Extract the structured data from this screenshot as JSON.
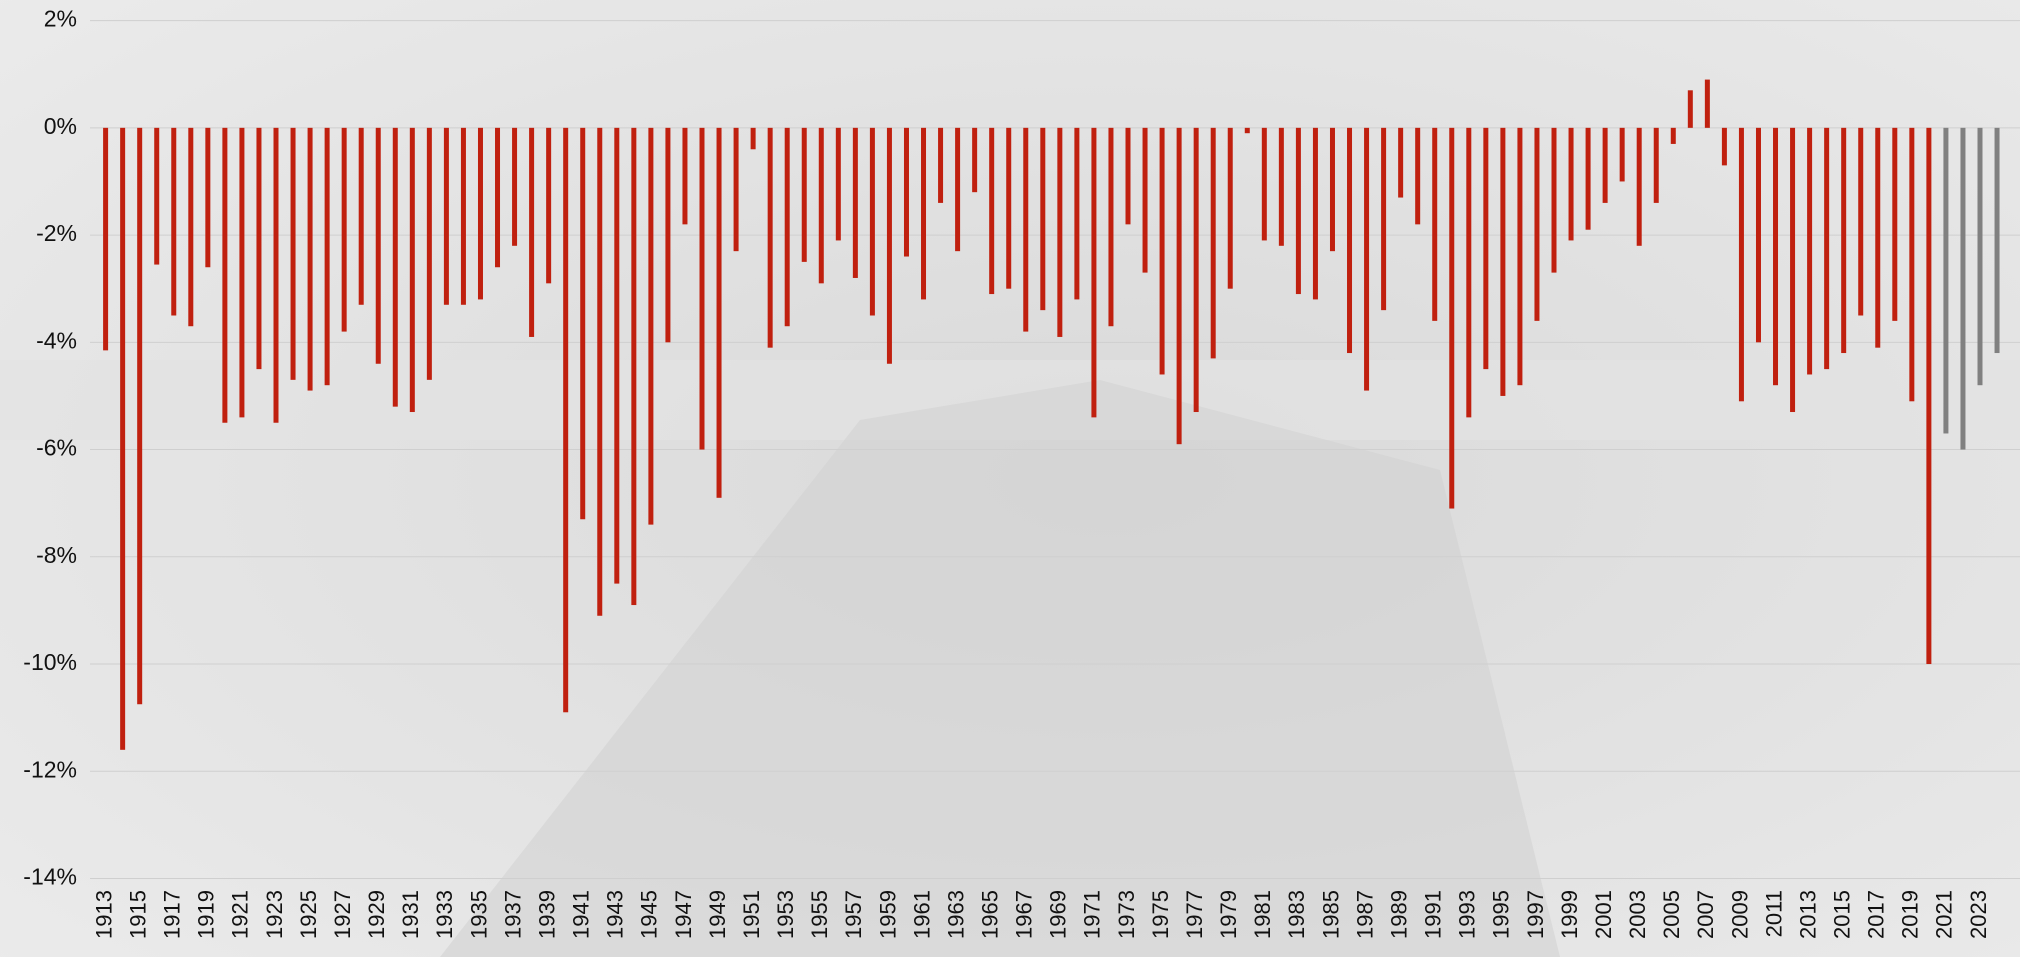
{
  "chart_data": {
    "type": "bar",
    "categories": [
      "1913",
      null,
      "1915",
      null,
      "1917",
      null,
      "1919",
      null,
      "1921",
      null,
      "1923",
      null,
      "1925",
      null,
      "1927",
      null,
      "1929",
      null,
      "1931",
      null,
      "1933",
      null,
      "1935",
      null,
      "1937",
      null,
      "1939",
      null,
      "1941",
      null,
      "1943",
      null,
      "1945",
      null,
      "1947",
      null,
      "1949",
      null,
      "1951",
      null,
      "1953",
      null,
      "1955",
      null,
      "1957",
      null,
      "1959",
      null,
      "1961",
      null,
      "1963",
      null,
      "1965",
      null,
      "1967",
      null,
      "1969",
      null,
      "1971",
      null,
      "1973",
      null,
      "1975",
      null,
      "1977",
      null,
      "1979",
      null,
      "1981",
      null,
      "1983",
      null,
      "1985",
      null,
      "1987",
      null,
      "1989",
      null,
      "1991",
      null,
      "1993",
      null,
      "1995",
      null,
      "1997",
      null,
      "1999",
      null,
      "2001",
      null,
      "2003",
      null,
      "2005",
      null,
      "2007",
      null,
      "2009",
      null,
      "2011",
      null,
      "2013",
      null,
      "2015",
      null,
      "2017",
      null,
      "2019",
      null,
      "2021",
      null,
      "2023",
      null
    ],
    "values": [
      -4.15,
      -11.6,
      -10.75,
      -2.55,
      -3.5,
      -3.7,
      -2.6,
      -5.5,
      -5.4,
      -4.5,
      -5.5,
      -4.7,
      -4.9,
      -4.8,
      -3.8,
      -3.3,
      -4.4,
      -5.2,
      -5.3,
      -4.7,
      -3.3,
      -3.3,
      -3.2,
      -2.6,
      -2.2,
      -3.9,
      -2.9,
      -10.9,
      -7.3,
      -9.1,
      -8.5,
      -8.9,
      -7.4,
      -4.0,
      -1.8,
      -6.0,
      -6.9,
      -2.3,
      -0.4,
      -4.1,
      -3.7,
      -2.5,
      -2.9,
      -2.1,
      -2.8,
      -3.5,
      -4.4,
      -2.4,
      -3.2,
      -1.4,
      -2.3,
      -1.2,
      -3.1,
      -3.0,
      -3.8,
      -3.4,
      -3.9,
      -3.2,
      -5.4,
      -3.7,
      -1.8,
      -2.7,
      -4.6,
      -5.9,
      -5.3,
      -4.3,
      -3.0,
      -0.1,
      -2.1,
      -2.2,
      -3.1,
      -3.2,
      -2.3,
      -4.2,
      -4.9,
      -3.4,
      -1.3,
      -1.8,
      -3.6,
      -7.1,
      -5.4,
      -4.5,
      -5.0,
      -4.8,
      -3.6,
      -2.7,
      -2.1,
      -1.9,
      -1.4,
      -1.0,
      -2.2,
      -1.4,
      -0.3,
      0.7,
      0.9,
      -0.7,
      -5.1,
      -4.0,
      -4.8,
      -5.3,
      -4.6,
      -4.5,
      -4.2,
      -3.5,
      -4.1,
      -3.6,
      -5.1,
      -10.0,
      -5.7,
      -6.0,
      -4.8,
      -4.2
    ],
    "colors": [
      "#c0200f",
      "#c0200f",
      "#c0200f",
      "#c0200f",
      "#c0200f",
      "#c0200f",
      "#c0200f",
      "#c0200f",
      "#c0200f",
      "#c0200f",
      "#c0200f",
      "#c0200f",
      "#c0200f",
      "#c0200f",
      "#c0200f",
      "#c0200f",
      "#c0200f",
      "#c0200f",
      "#c0200f",
      "#c0200f",
      "#c0200f",
      "#c0200f",
      "#c0200f",
      "#c0200f",
      "#c0200f",
      "#c0200f",
      "#c0200f",
      "#c0200f",
      "#c0200f",
      "#c0200f",
      "#c0200f",
      "#c0200f",
      "#c0200f",
      "#c0200f",
      "#c0200f",
      "#c0200f",
      "#c0200f",
      "#c0200f",
      "#c0200f",
      "#c0200f",
      "#c0200f",
      "#c0200f",
      "#c0200f",
      "#c0200f",
      "#c0200f",
      "#c0200f",
      "#c0200f",
      "#c0200f",
      "#c0200f",
      "#c0200f",
      "#c0200f",
      "#c0200f",
      "#c0200f",
      "#c0200f",
      "#c0200f",
      "#c0200f",
      "#c0200f",
      "#c0200f",
      "#c0200f",
      "#c0200f",
      "#c0200f",
      "#c0200f",
      "#c0200f",
      "#c0200f",
      "#c0200f",
      "#c0200f",
      "#c0200f",
      "#c0200f",
      "#c0200f",
      "#c0200f",
      "#c0200f",
      "#c0200f",
      "#c0200f",
      "#c0200f",
      "#c0200f",
      "#c0200f",
      "#c0200f",
      "#c0200f",
      "#c0200f",
      "#c0200f",
      "#c0200f",
      "#c0200f",
      "#c0200f",
      "#c0200f",
      "#c0200f",
      "#c0200f",
      "#c0200f",
      "#c0200f",
      "#c0200f",
      "#c0200f",
      "#c0200f",
      "#c0200f",
      "#c0200f",
      "#c0200f",
      "#c0200f",
      "#c0200f",
      "#c0200f",
      "#c0200f",
      "#c0200f",
      "#c0200f",
      "#c0200f",
      "#c0200f",
      "#c0200f",
      "#c0200f",
      "#c0200f",
      "#c0200f",
      "#c0200f",
      "#c0200f",
      "#808080",
      "#808080",
      "#808080",
      "#808080"
    ],
    "ylim": [
      -14,
      2
    ],
    "yticks": [
      {
        "value": -14,
        "label": "-14%"
      },
      {
        "value": -12,
        "label": "-12%"
      },
      {
        "value": -10,
        "label": "-10%"
      },
      {
        "value": -8,
        "label": "-8%"
      },
      {
        "value": -6,
        "label": "-6%"
      },
      {
        "value": -4,
        "label": "-4%"
      },
      {
        "value": -2,
        "label": "-2%"
      },
      {
        "value": 0,
        "label": "0%"
      },
      {
        "value": 2,
        "label": "2%"
      }
    ],
    "grid": true
  }
}
